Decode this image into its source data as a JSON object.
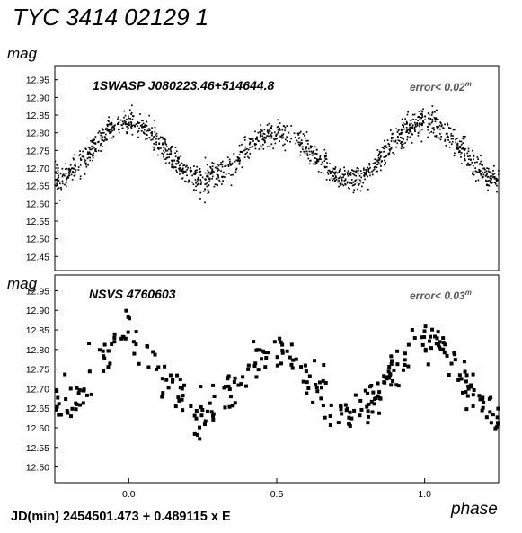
{
  "figure": {
    "title": "TYC 3414 02129 1",
    "ylabel_top": "mag",
    "ylabel_bottom": "mag",
    "xlabel": "phase",
    "ephemeris": "JD(min) 2454501.473  + 0.489115 x E"
  },
  "chart_data": [
    {
      "type": "scatter",
      "star_label": "1SWASP J080223.46+514644.8",
      "error_label": "error< 0.02",
      "error_unit": "m",
      "xlim": [
        -0.25,
        1.25
      ],
      "ylim": [
        12.99,
        12.41
      ],
      "y_reversed": true,
      "yticks": [
        "12.45",
        "12.50",
        "12.55",
        "12.60",
        "12.65",
        "12.70",
        "12.75",
        "12.80",
        "12.85",
        "12.90",
        "12.95"
      ],
      "grid": false,
      "marker": "small-dot",
      "model": {
        "max_phases": [
          0.0,
          0.5,
          1.0
        ],
        "min_mag_primary": 12.83,
        "min_mag_secondary": 12.8,
        "max_mag": 12.67,
        "scatter": 0.02,
        "n_points": 1500,
        "gap": [
          0.53,
          0.57
        ]
      }
    },
    {
      "type": "scatter",
      "star_label": "NSVS 4760603",
      "error_label": "error< 0.03",
      "error_unit": "m",
      "xlim": [
        -0.25,
        1.25
      ],
      "ylim": [
        12.99,
        12.46
      ],
      "y_reversed": true,
      "xticks": [
        "0.0",
        "0.5",
        "1.0"
      ],
      "xtick_values": [
        0.0,
        0.5,
        1.0
      ],
      "yticks": [
        "12.50",
        "12.55",
        "12.60",
        "12.65",
        "12.70",
        "12.75",
        "12.80",
        "12.85",
        "12.90",
        "12.95"
      ],
      "grid": false,
      "marker": "square",
      "model": {
        "min_mag_primary": 12.83,
        "min_mag_secondary": 12.8,
        "max_mag": 12.64,
        "scatter": 0.03,
        "n_points": 320
      }
    }
  ]
}
